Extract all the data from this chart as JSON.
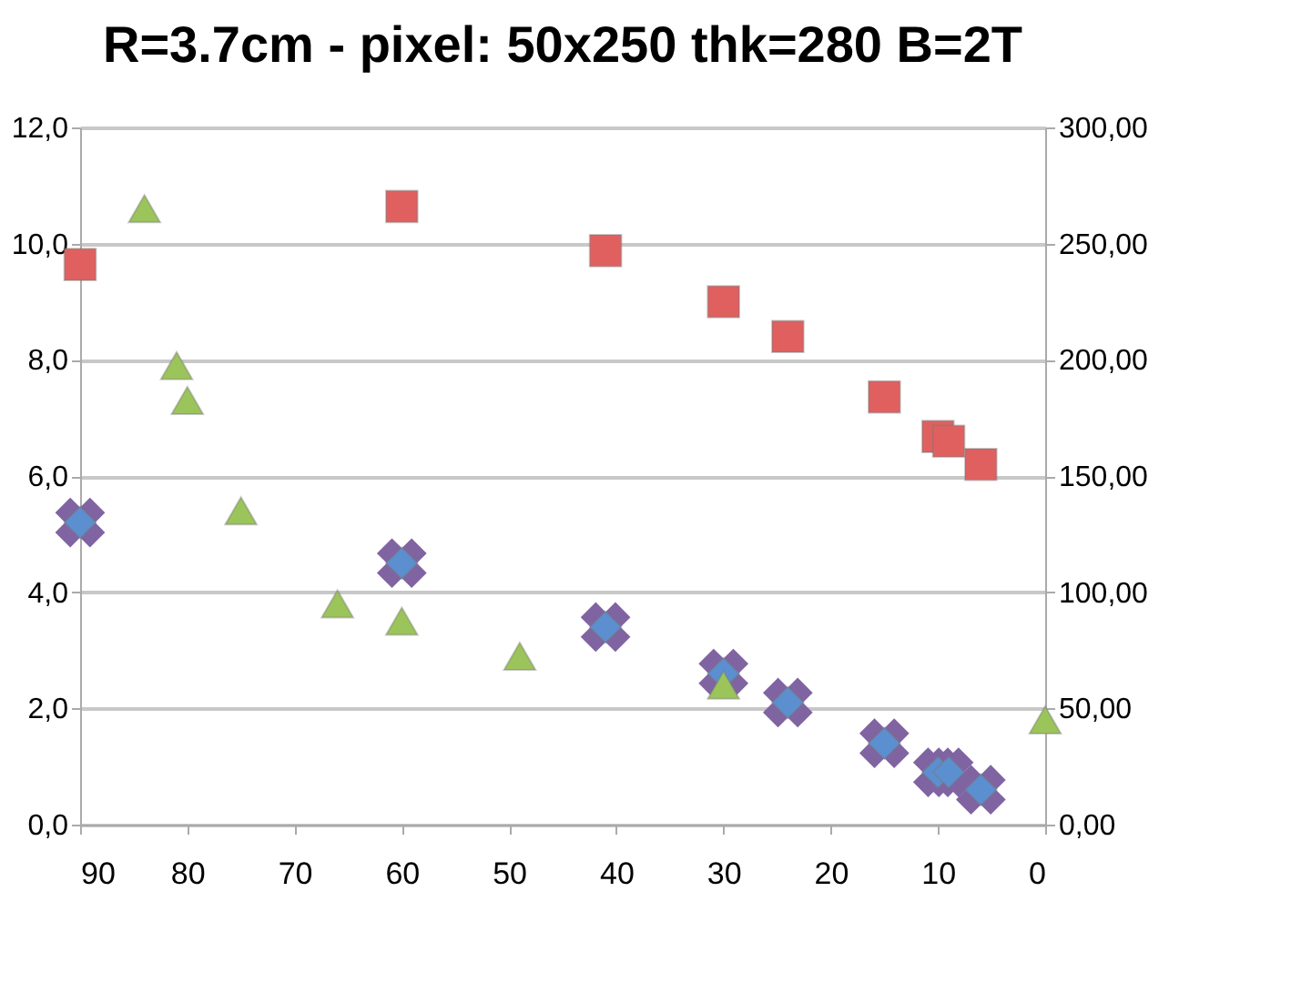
{
  "chart_data": {
    "type": "scatter",
    "title": "R=3.7cm -  pixel: 50x250 thk=280 B=2T",
    "xlim": [
      90,
      0
    ],
    "xticks": [
      90,
      80,
      70,
      60,
      50,
      40,
      30,
      20,
      10,
      0
    ],
    "ylim": [
      0,
      12
    ],
    "yticks": [
      {
        "value": 0,
        "label": "0,0"
      },
      {
        "value": 2,
        "label": "2,0"
      },
      {
        "value": 4,
        "label": "4,0"
      },
      {
        "value": 6,
        "label": "6,0"
      },
      {
        "value": 8,
        "label": "8,0"
      },
      {
        "value": 10,
        "label": "10,0"
      },
      {
        "value": 12,
        "label": "12,0"
      }
    ],
    "y2lim": [
      0,
      300
    ],
    "y2ticks": [
      {
        "value": 0,
        "label": "0,00"
      },
      {
        "value": 50,
        "label": "50,00"
      },
      {
        "value": 100,
        "label": "100,00"
      },
      {
        "value": 150,
        "label": "150,00"
      },
      {
        "value": 200,
        "label": "200,00"
      },
      {
        "value": 250,
        "label": "250,00"
      },
      {
        "value": 300,
        "label": "300,00"
      }
    ],
    "grid": "y",
    "series": [
      {
        "color": "#8064a2",
        "marker": "cross",
        "x": [
          90,
          60,
          41,
          30,
          24,
          15,
          10,
          9,
          6
        ],
        "values": [
          5.2,
          4.5,
          3.4,
          2.6,
          2.1,
          1.4,
          0.9,
          0.9,
          0.6
        ]
      },
      {
        "color": "#5b8fd0",
        "marker": "diamond",
        "x": [
          90,
          60,
          41,
          30,
          24,
          15,
          10,
          9,
          6
        ],
        "values": [
          5.2,
          4.5,
          3.4,
          2.6,
          2.1,
          1.4,
          0.9,
          0.9,
          0.6
        ]
      },
      {
        "color": "#9bc45a",
        "marker": "triangle",
        "x": [
          84,
          81,
          80,
          75,
          66,
          60,
          49,
          30,
          0
        ],
        "values": [
          10.6,
          7.9,
          7.3,
          5.4,
          3.8,
          3.5,
          2.9,
          2.4,
          1.8
        ]
      },
      {
        "color": "#e06060",
        "marker": "square",
        "axis": "y2",
        "x": [
          90,
          60,
          41,
          30,
          24,
          15,
          10,
          9,
          6
        ],
        "values": [
          241,
          266,
          247,
          225,
          210,
          184,
          167,
          165,
          155
        ]
      }
    ]
  }
}
